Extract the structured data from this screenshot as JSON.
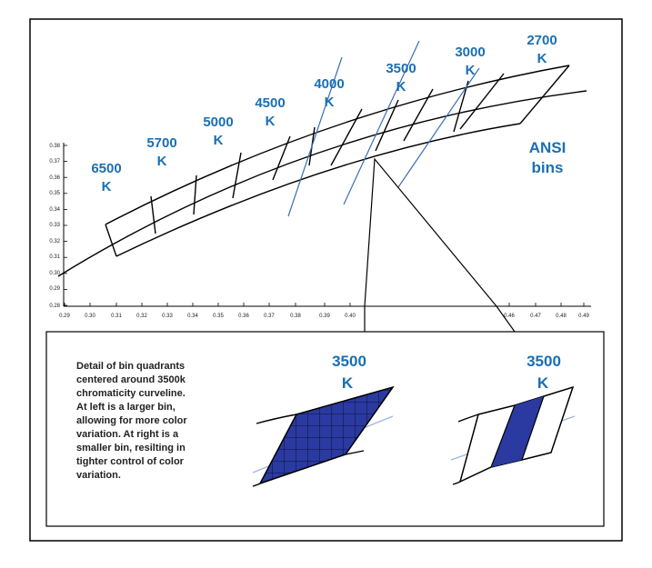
{
  "bins": [
    {
      "line1": "6500",
      "line2": "K"
    },
    {
      "line1": "5700",
      "line2": "K"
    },
    {
      "line1": "5000",
      "line2": "K"
    },
    {
      "line1": "4500",
      "line2": "K"
    },
    {
      "line1": "4000",
      "line2": "K"
    },
    {
      "line1": "3500",
      "line2": "K"
    },
    {
      "line1": "3000",
      "line2": "K"
    },
    {
      "line1": "2700",
      "line2": "K"
    }
  ],
  "ansi_label": {
    "line1": "ANSI",
    "line2": "bins"
  },
  "y_ticks": [
    "0.38",
    "0.37",
    "0.36",
    "0.35",
    "0.34",
    "0.33",
    "0.32",
    "0.31",
    "0.30",
    "0.29",
    "0.28"
  ],
  "x_ticks": [
    "0.29",
    "0.30",
    "0.31",
    "0.32",
    "0.33",
    "0.34",
    "0.35",
    "0.36",
    "0.37",
    "0.38",
    "0.39",
    "0.40",
    "0.46",
    "0.47",
    "0.48",
    "0.49"
  ],
  "detail": {
    "description": "Detail of bin quadrants\ncentered around 3500k\nchromaticity curveline.\nAt left is a larger bin,\nallowing for more color\nvariation.  At right is a\nsmaller bin, resilting in\ntighter control of color\nvariation.",
    "left_label": {
      "line1": "3500",
      "line2": "K"
    },
    "right_label": {
      "line1": "3500",
      "line2": "K"
    }
  },
  "colors": {
    "label_blue": "#1a6fb3",
    "fill_blue": "#2b3aa0",
    "line_blue": "#3a6fb5"
  }
}
